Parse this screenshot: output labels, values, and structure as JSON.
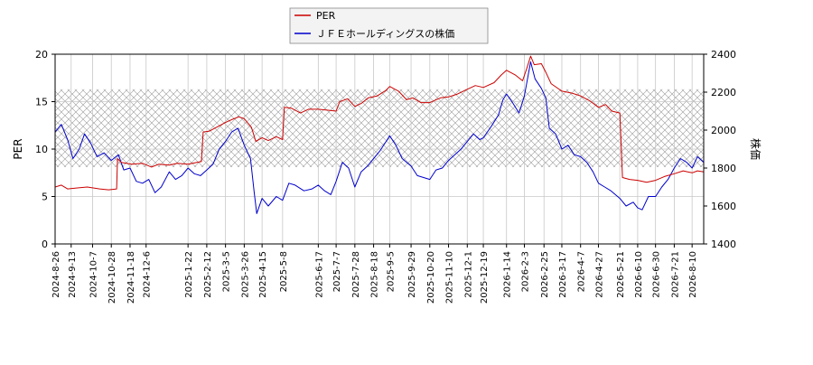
{
  "chart_data": {
    "type": "line",
    "title": "",
    "xlabel": "",
    "ylabel_left": "PER",
    "ylabel_right": "株価",
    "ylim_left": [
      0,
      20
    ],
    "yticks_left": [
      "0",
      "5",
      "10",
      "15",
      "20"
    ],
    "ylim_right": [
      1400,
      2400
    ],
    "yticks_right": [
      "1400",
      "1600",
      "1800",
      "2000",
      "2200",
      "2400"
    ],
    "x_start": "2024-8-26",
    "x_end": "2026-8-23",
    "x_ticks": [
      "2024-8-26",
      "2024-9-13",
      "2024-10-7",
      "2024-10-28",
      "2024-11-18",
      "2024-12-6",
      "2025-1-22",
      "2025-2-12",
      "2025-3-5",
      "2025-3-26",
      "2025-4-15",
      "2025-5-8",
      "2025-6-17",
      "2025-7-7",
      "2025-7-28",
      "2025-8-18",
      "2025-9-5",
      "2025-9-29",
      "2025-10-20",
      "2025-11-10",
      "2025-12-1",
      "2025-12-19",
      "2026-1-14",
      "2026-2-3",
      "2026-2-25",
      "2026-3-17",
      "2026-4-7",
      "2026-4-27",
      "2026-5-21",
      "2026-6-10",
      "2026-6-30",
      "2026-7-21",
      "2026-8-10"
    ],
    "band_left": [
      8.1,
      16.3
    ],
    "legend_position": "top-center",
    "grid": true,
    "series": [
      {
        "name": "PER",
        "axis": "left",
        "color": "#cc0000",
        "points": [
          [
            "2024-8-26",
            6.0
          ],
          [
            "2024-9-2",
            6.2
          ],
          [
            "2024-9-9",
            5.8
          ],
          [
            "2024-9-20",
            5.9
          ],
          [
            "2024-10-1",
            6.0
          ],
          [
            "2024-10-15",
            5.8
          ],
          [
            "2024-10-25",
            5.7
          ],
          [
            "2024-11-3",
            5.8
          ],
          [
            "2024-11-4",
            9.0
          ],
          [
            "2024-11-8",
            8.6
          ],
          [
            "2024-11-20",
            8.4
          ],
          [
            "2024-12-2",
            8.5
          ],
          [
            "2024-12-12",
            8.1
          ],
          [
            "2024-12-20",
            8.4
          ],
          [
            "2025-1-1",
            8.3
          ],
          [
            "2025-1-10",
            8.5
          ],
          [
            "2025-1-22",
            8.4
          ],
          [
            "2025-2-6",
            8.7
          ],
          [
            "2025-2-8",
            11.8
          ],
          [
            "2025-2-15",
            11.9
          ],
          [
            "2025-2-25",
            12.4
          ],
          [
            "2025-3-5",
            12.8
          ],
          [
            "2025-3-12",
            13.1
          ],
          [
            "2025-3-20",
            13.4
          ],
          [
            "2025-3-26",
            13.2
          ],
          [
            "2025-4-3",
            12.3
          ],
          [
            "2025-4-8",
            10.8
          ],
          [
            "2025-4-15",
            11.2
          ],
          [
            "2025-4-22",
            10.9
          ],
          [
            "2025-5-1",
            11.3
          ],
          [
            "2025-5-8",
            11.0
          ],
          [
            "2025-5-10",
            14.4
          ],
          [
            "2025-5-18",
            14.3
          ],
          [
            "2025-5-28",
            13.8
          ],
          [
            "2025-6-6",
            14.2
          ],
          [
            "2025-6-17",
            14.2
          ],
          [
            "2025-6-28",
            14.1
          ],
          [
            "2025-7-7",
            14.0
          ],
          [
            "2025-7-11",
            15.0
          ],
          [
            "2025-7-20",
            15.3
          ],
          [
            "2025-7-28",
            14.5
          ],
          [
            "2025-8-4",
            14.8
          ],
          [
            "2025-8-12",
            15.4
          ],
          [
            "2025-8-22",
            15.6
          ],
          [
            "2025-9-1",
            16.2
          ],
          [
            "2025-9-5",
            16.6
          ],
          [
            "2025-9-15",
            16.1
          ],
          [
            "2025-9-24",
            15.2
          ],
          [
            "2025-10-1",
            15.4
          ],
          [
            "2025-10-10",
            14.9
          ],
          [
            "2025-10-20",
            14.9
          ],
          [
            "2025-11-1",
            15.4
          ],
          [
            "2025-11-10",
            15.5
          ],
          [
            "2025-11-20",
            15.8
          ],
          [
            "2025-12-1",
            16.3
          ],
          [
            "2025-12-10",
            16.7
          ],
          [
            "2025-12-19",
            16.5
          ],
          [
            "2025-12-31",
            17.0
          ],
          [
            "2026-1-8",
            17.8
          ],
          [
            "2026-1-14",
            18.3
          ],
          [
            "2026-1-24",
            17.8
          ],
          [
            "2026-2-1",
            17.2
          ],
          [
            "2026-2-6",
            18.6
          ],
          [
            "2026-2-10",
            19.8
          ],
          [
            "2026-2-14",
            18.9
          ],
          [
            "2026-2-22",
            19.0
          ],
          [
            "2026-2-27",
            18.1
          ],
          [
            "2026-3-5",
            16.9
          ],
          [
            "2026-3-17",
            16.1
          ],
          [
            "2026-3-28",
            15.9
          ],
          [
            "2026-4-7",
            15.6
          ],
          [
            "2026-4-17",
            15.1
          ],
          [
            "2026-4-27",
            14.4
          ],
          [
            "2026-5-5",
            14.7
          ],
          [
            "2026-5-12",
            14.0
          ],
          [
            "2026-5-21",
            13.8
          ],
          [
            "2026-5-24",
            7.0
          ],
          [
            "2026-6-1",
            6.8
          ],
          [
            "2026-6-10",
            6.7
          ],
          [
            "2026-6-20",
            6.5
          ],
          [
            "2026-6-30",
            6.7
          ],
          [
            "2026-7-10",
            7.1
          ],
          [
            "2026-7-21",
            7.4
          ],
          [
            "2026-7-31",
            7.7
          ],
          [
            "2026-8-10",
            7.5
          ],
          [
            "2026-8-16",
            7.7
          ],
          [
            "2026-8-23",
            7.6
          ]
        ]
      },
      {
        "name": "ＪＦＥホールディングスの株価",
        "axis": "right",
        "color": "#0000cc",
        "points": [
          [
            "2024-8-26",
            1990
          ],
          [
            "2024-9-2",
            2030
          ],
          [
            "2024-9-9",
            1950
          ],
          [
            "2024-9-15",
            1850
          ],
          [
            "2024-9-22",
            1900
          ],
          [
            "2024-9-28",
            1980
          ],
          [
            "2024-10-5",
            1930
          ],
          [
            "2024-10-12",
            1860
          ],
          [
            "2024-10-20",
            1880
          ],
          [
            "2024-10-28",
            1840
          ],
          [
            "2024-11-5",
            1870
          ],
          [
            "2024-11-11",
            1790
          ],
          [
            "2024-11-18",
            1800
          ],
          [
            "2024-11-25",
            1730
          ],
          [
            "2024-12-2",
            1720
          ],
          [
            "2024-12-9",
            1740
          ],
          [
            "2024-12-16",
            1670
          ],
          [
            "2024-12-23",
            1700
          ],
          [
            "2025-1-1",
            1780
          ],
          [
            "2025-1-8",
            1740
          ],
          [
            "2025-1-15",
            1760
          ],
          [
            "2025-1-22",
            1800
          ],
          [
            "2025-1-29",
            1770
          ],
          [
            "2025-2-5",
            1760
          ],
          [
            "2025-2-12",
            1790
          ],
          [
            "2025-2-19",
            1820
          ],
          [
            "2025-2-26",
            1900
          ],
          [
            "2025-3-5",
            1940
          ],
          [
            "2025-3-12",
            1990
          ],
          [
            "2025-3-19",
            2010
          ],
          [
            "2025-3-26",
            1920
          ],
          [
            "2025-4-2",
            1850
          ],
          [
            "2025-4-6",
            1680
          ],
          [
            "2025-4-9",
            1560
          ],
          [
            "2025-4-15",
            1640
          ],
          [
            "2025-4-22",
            1600
          ],
          [
            "2025-5-1",
            1650
          ],
          [
            "2025-5-8",
            1630
          ],
          [
            "2025-5-15",
            1720
          ],
          [
            "2025-5-22",
            1710
          ],
          [
            "2025-6-1",
            1680
          ],
          [
            "2025-6-10",
            1690
          ],
          [
            "2025-6-17",
            1710
          ],
          [
            "2025-6-24",
            1680
          ],
          [
            "2025-7-1",
            1660
          ],
          [
            "2025-7-7",
            1730
          ],
          [
            "2025-7-14",
            1830
          ],
          [
            "2025-7-21",
            1800
          ],
          [
            "2025-7-28",
            1700
          ],
          [
            "2025-8-4",
            1780
          ],
          [
            "2025-8-11",
            1810
          ],
          [
            "2025-8-18",
            1850
          ],
          [
            "2025-8-25",
            1890
          ],
          [
            "2025-9-1",
            1940
          ],
          [
            "2025-9-5",
            1970
          ],
          [
            "2025-9-12",
            1920
          ],
          [
            "2025-9-19",
            1850
          ],
          [
            "2025-9-29",
            1810
          ],
          [
            "2025-10-6",
            1760
          ],
          [
            "2025-10-13",
            1750
          ],
          [
            "2025-10-20",
            1740
          ],
          [
            "2025-10-27",
            1790
          ],
          [
            "2025-11-3",
            1800
          ],
          [
            "2025-11-10",
            1840
          ],
          [
            "2025-11-17",
            1870
          ],
          [
            "2025-11-24",
            1900
          ],
          [
            "2025-12-1",
            1940
          ],
          [
            "2025-12-8",
            1980
          ],
          [
            "2025-12-15",
            1950
          ],
          [
            "2025-12-19",
            1960
          ],
          [
            "2025-12-28",
            2020
          ],
          [
            "2026-1-5",
            2080
          ],
          [
            "2026-1-10",
            2160
          ],
          [
            "2026-1-14",
            2190
          ],
          [
            "2026-1-20",
            2150
          ],
          [
            "2026-1-28",
            2090
          ],
          [
            "2026-2-3",
            2180
          ],
          [
            "2026-2-10",
            2360
          ],
          [
            "2026-2-15",
            2270
          ],
          [
            "2026-2-22",
            2220
          ],
          [
            "2026-2-27",
            2170
          ],
          [
            "2026-3-3",
            2010
          ],
          [
            "2026-3-10",
            1980
          ],
          [
            "2026-3-17",
            1900
          ],
          [
            "2026-3-24",
            1920
          ],
          [
            "2026-3-31",
            1870
          ],
          [
            "2026-4-7",
            1860
          ],
          [
            "2026-4-14",
            1830
          ],
          [
            "2026-4-21",
            1780
          ],
          [
            "2026-4-27",
            1720
          ],
          [
            "2026-5-4",
            1700
          ],
          [
            "2026-5-11",
            1680
          ],
          [
            "2026-5-21",
            1640
          ],
          [
            "2026-5-28",
            1600
          ],
          [
            "2026-6-5",
            1620
          ],
          [
            "2026-6-10",
            1590
          ],
          [
            "2026-6-15",
            1580
          ],
          [
            "2026-6-22",
            1650
          ],
          [
            "2026-6-30",
            1650
          ],
          [
            "2026-7-7",
            1700
          ],
          [
            "2026-7-14",
            1740
          ],
          [
            "2026-7-21",
            1800
          ],
          [
            "2026-7-28",
            1850
          ],
          [
            "2026-8-4",
            1830
          ],
          [
            "2026-8-10",
            1800
          ],
          [
            "2026-8-16",
            1860
          ],
          [
            "2026-8-23",
            1830
          ]
        ]
      }
    ]
  }
}
